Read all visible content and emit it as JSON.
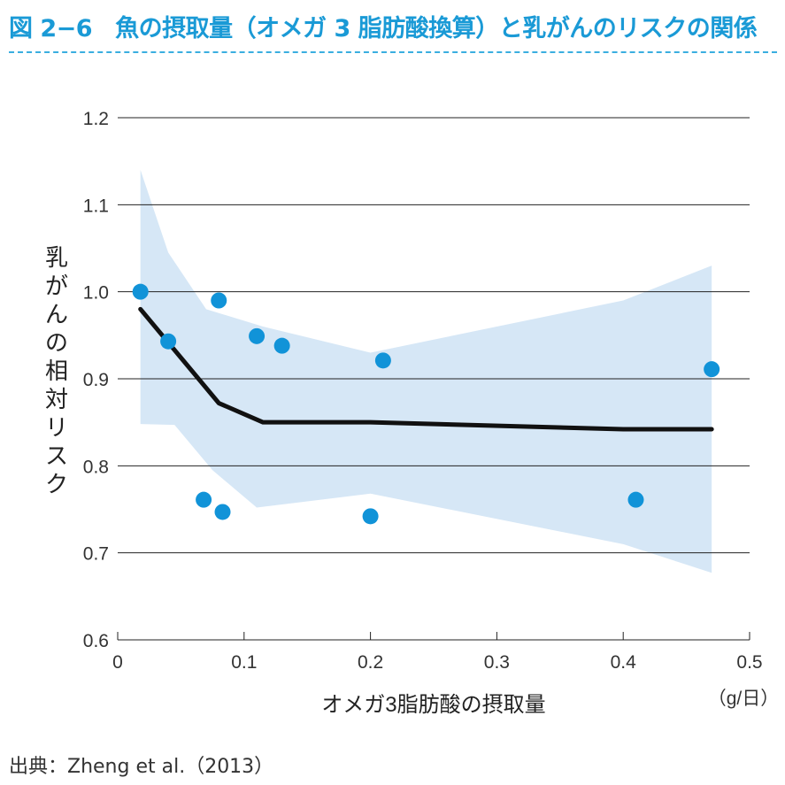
{
  "figure": {
    "number": "図 2−6",
    "title": "魚の摂取量（オメガ 3 脂肪酸換算）と乳がんのリスクの関係"
  },
  "source": "出典：Zheng et al.（2013）",
  "colors": {
    "title": "#1a9ad6",
    "points": "#1193d8",
    "band": "#d6e7f6",
    "line": "#111111",
    "grid": "#222222"
  },
  "chart_data": {
    "type": "line",
    "xlabel": "オメガ3脂肪酸の摂取量",
    "xunit": "（g/日）",
    "ylabel": "乳がんの相対リスク",
    "xlim": [
      0,
      0.5
    ],
    "ylim": [
      0.6,
      1.2
    ],
    "x_ticks": [
      {
        "value": 0,
        "label": "0"
      },
      {
        "value": 0.1,
        "label": "0.1"
      },
      {
        "value": 0.2,
        "label": "0.2"
      },
      {
        "value": 0.3,
        "label": "0.3"
      },
      {
        "value": 0.4,
        "label": "0.4"
      },
      {
        "value": 0.5,
        "label": "0.5"
      }
    ],
    "y_ticks": [
      {
        "value": 0.6,
        "label": "0.6"
      },
      {
        "value": 0.7,
        "label": "0.7"
      },
      {
        "value": 0.8,
        "label": "0.8"
      },
      {
        "value": 0.9,
        "label": "0.9"
      },
      {
        "value": 1.0,
        "label": "1.0"
      },
      {
        "value": 1.1,
        "label": "1.1"
      },
      {
        "value": 1.2,
        "label": "1.2"
      }
    ],
    "grid": "horizontal",
    "trend_line": [
      {
        "x": 0.018,
        "y": 0.98
      },
      {
        "x": 0.08,
        "y": 0.872
      },
      {
        "x": 0.115,
        "y": 0.85
      },
      {
        "x": 0.2,
        "y": 0.85
      },
      {
        "x": 0.4,
        "y": 0.842
      },
      {
        "x": 0.47,
        "y": 0.842
      }
    ],
    "confidence_band": {
      "upper": [
        {
          "x": 0.018,
          "y": 1.14
        },
        {
          "x": 0.04,
          "y": 1.045
        },
        {
          "x": 0.07,
          "y": 0.98
        },
        {
          "x": 0.115,
          "y": 0.96
        },
        {
          "x": 0.2,
          "y": 0.93
        },
        {
          "x": 0.4,
          "y": 0.99
        },
        {
          "x": 0.47,
          "y": 1.03
        }
      ],
      "lower": [
        {
          "x": 0.018,
          "y": 0.848
        },
        {
          "x": 0.045,
          "y": 0.847
        },
        {
          "x": 0.075,
          "y": 0.795
        },
        {
          "x": 0.11,
          "y": 0.752
        },
        {
          "x": 0.2,
          "y": 0.768
        },
        {
          "x": 0.4,
          "y": 0.71
        },
        {
          "x": 0.47,
          "y": 0.677
        }
      ]
    },
    "points": [
      {
        "x": 0.018,
        "y": 1.0
      },
      {
        "x": 0.04,
        "y": 0.943
      },
      {
        "x": 0.068,
        "y": 0.761
      },
      {
        "x": 0.08,
        "y": 0.99
      },
      {
        "x": 0.083,
        "y": 0.747
      },
      {
        "x": 0.11,
        "y": 0.949
      },
      {
        "x": 0.13,
        "y": 0.938
      },
      {
        "x": 0.2,
        "y": 0.742
      },
      {
        "x": 0.21,
        "y": 0.921
      },
      {
        "x": 0.41,
        "y": 0.761
      },
      {
        "x": 0.47,
        "y": 0.911
      }
    ]
  }
}
